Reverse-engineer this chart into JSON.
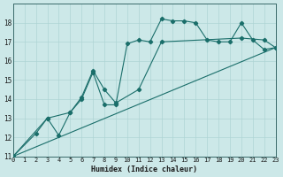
{
  "xlabel": "Humidex (Indice chaleur)",
  "xlim": [
    0,
    23
  ],
  "ylim": [
    11,
    19
  ],
  "yticks": [
    11,
    12,
    13,
    14,
    15,
    16,
    17,
    18
  ],
  "xticks": [
    0,
    1,
    2,
    3,
    4,
    5,
    6,
    7,
    8,
    9,
    10,
    11,
    12,
    13,
    14,
    15,
    16,
    17,
    18,
    19,
    20,
    21,
    22,
    23
  ],
  "bg_color": "#cce8e8",
  "line_color": "#1a6e6a",
  "grid_color": "#aed4d4",
  "line1_x": [
    0,
    2,
    3,
    4,
    5,
    6,
    7,
    8,
    9,
    10,
    11,
    12,
    13,
    14,
    15,
    16,
    17,
    18,
    19,
    20,
    21,
    22,
    23
  ],
  "line1_y": [
    11,
    12.2,
    13.0,
    12.1,
    13.3,
    14.0,
    15.4,
    13.7,
    13.7,
    16.9,
    17.1,
    17.0,
    18.2,
    18.1,
    18.1,
    18.0,
    17.1,
    17.0,
    17.0,
    18.0,
    17.1,
    16.6,
    16.7
  ],
  "line2_x": [
    0,
    3,
    5,
    6,
    7,
    8,
    9,
    11,
    13,
    20,
    22,
    23
  ],
  "line2_y": [
    11,
    13.0,
    13.3,
    14.1,
    15.5,
    14.5,
    13.8,
    14.5,
    17.0,
    17.2,
    17.1,
    16.7
  ],
  "line3_x": [
    0,
    23
  ],
  "line3_y": [
    11,
    16.7
  ]
}
